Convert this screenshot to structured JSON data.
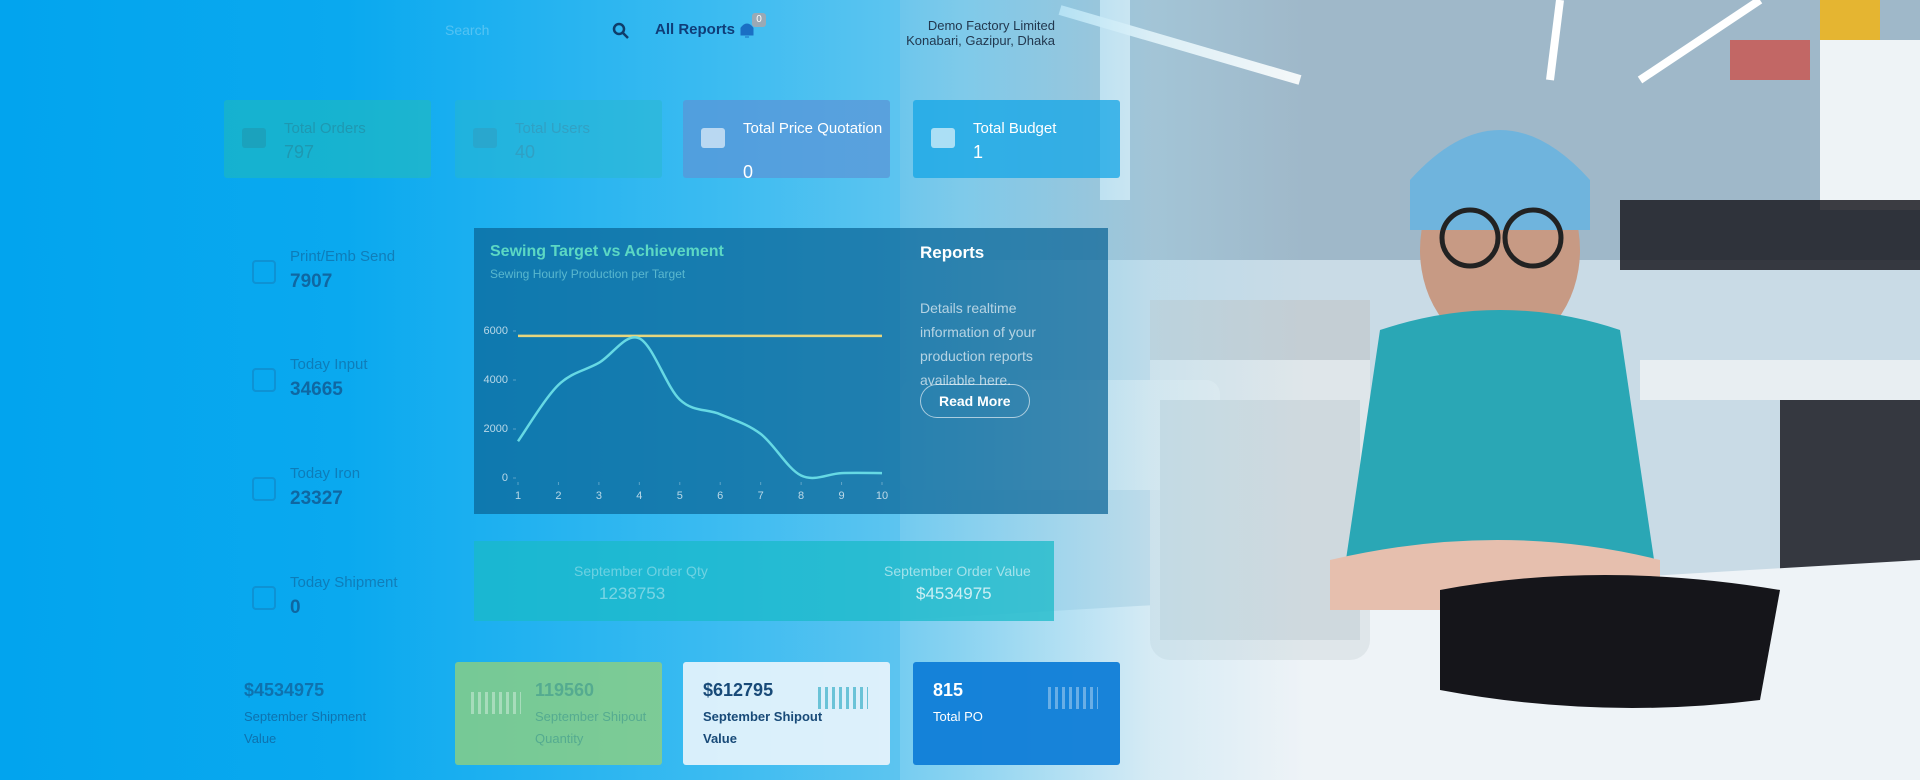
{
  "header": {
    "search": "Search",
    "all_reports": "All Reports",
    "notifications": "0",
    "company": "Demo Factory Limited",
    "address": "Konabari, Gazipur, Dhaka"
  },
  "summary_cards": [
    {
      "label": "Total Orders",
      "value": "797"
    },
    {
      "label": "Total Users",
      "value": "40"
    },
    {
      "label": "Total Price Quotation",
      "value": "0"
    },
    {
      "label": "Total Budget",
      "value": "1"
    }
  ],
  "stats": [
    {
      "label": "Print/Emb Send",
      "value": "7907"
    },
    {
      "label": "Today Input",
      "value": "34665"
    },
    {
      "label": "Today Iron",
      "value": "23327"
    },
    {
      "label": "Today Shipment",
      "value": "0"
    }
  ],
  "chart_data": {
    "type": "line",
    "title": "Sewing Target vs Achievement",
    "subtitle": "Sewing Hourly Production per Target",
    "x": [
      1,
      2,
      3,
      4,
      5,
      6,
      7,
      8,
      9,
      10
    ],
    "xlim": [
      1,
      10
    ],
    "xticks": [
      1,
      2,
      3,
      4,
      5,
      6,
      7,
      8,
      9,
      10
    ],
    "ylim": [
      0,
      6000
    ],
    "yticks": [
      0,
      2000,
      4000,
      6000
    ],
    "series": [
      {
        "name": "Target",
        "color": "#e6d67e",
        "values": [
          5800,
          5800,
          5800,
          5800,
          5800,
          5800,
          5800,
          5800,
          5800,
          5800
        ]
      },
      {
        "name": "Achievement",
        "color": "#66d9e4",
        "values": [
          1500,
          3800,
          4700,
          5700,
          3200,
          2600,
          1800,
          100,
          200,
          200
        ]
      }
    ]
  },
  "reports": {
    "title": "Reports",
    "text": "Details realtime information of your production reports available here.",
    "button": "Read More"
  },
  "order_summary": [
    {
      "label": "September Order Qty",
      "value": "1238753"
    },
    {
      "label": "September Order Value",
      "value": "$4534975"
    }
  ],
  "bottom_cards": [
    {
      "value": "$4534975",
      "label": "September Shipment Value"
    },
    {
      "value": "119560",
      "label": "September Shipout Quantity"
    },
    {
      "value": "$612795",
      "label": "September Shipout Value"
    },
    {
      "value": "815",
      "label": "Total PO"
    }
  ]
}
